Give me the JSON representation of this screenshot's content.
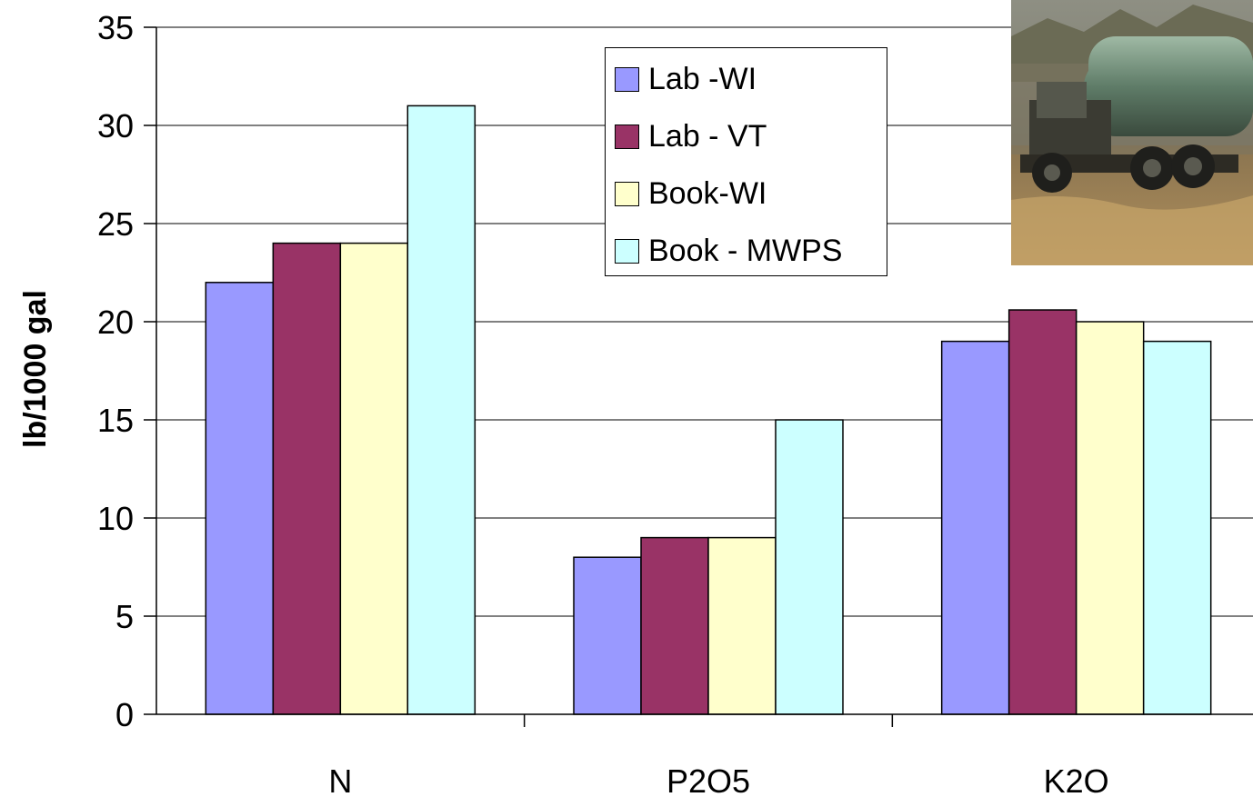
{
  "chart_data": {
    "type": "bar",
    "categories": [
      "N",
      "P2O5",
      "K2O"
    ],
    "series": [
      {
        "name": "Lab -WI",
        "values": [
          22,
          8,
          19
        ],
        "color": "#9999ff"
      },
      {
        "name": "Lab - VT",
        "values": [
          24,
          9,
          20.6
        ],
        "color": "#993366"
      },
      {
        "name": "Book-WI",
        "values": [
          24,
          9,
          20
        ],
        "color": "#ffffcc"
      },
      {
        "name": "Book - MWPS",
        "values": [
          31,
          15,
          19
        ],
        "color": "#ccffff"
      }
    ],
    "ylabel": "lb/1000 gal",
    "ylim": [
      0,
      35
    ],
    "yticks": [
      0,
      5,
      10,
      15,
      20,
      25,
      30,
      35
    ],
    "grid": true,
    "legend_position": "top-center-right"
  },
  "photo": {
    "icon": "manure-tanker-truck-photo"
  }
}
